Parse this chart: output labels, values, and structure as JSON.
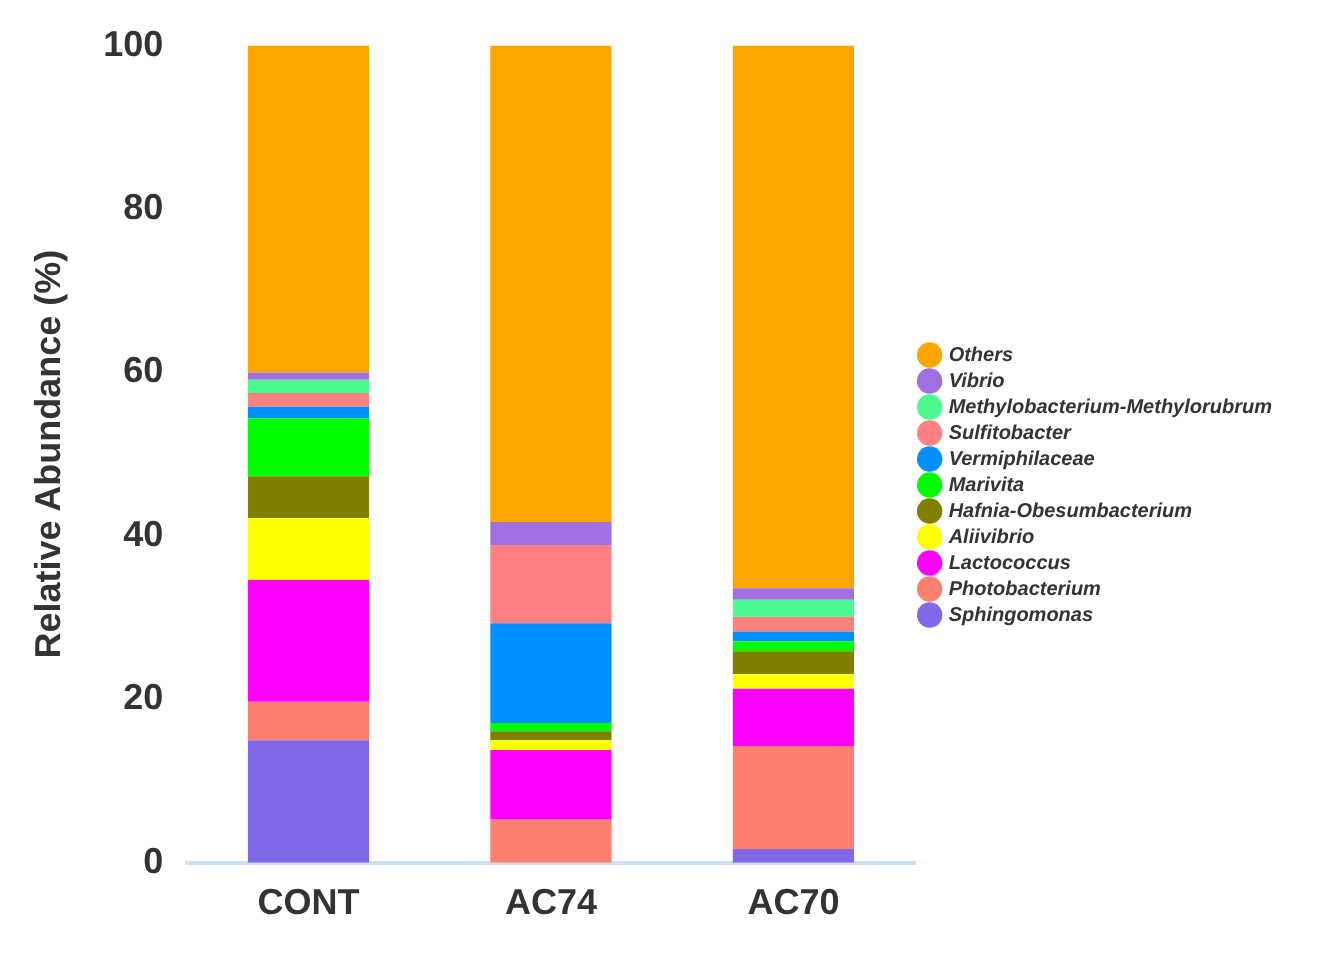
{
  "chart_data": {
    "type": "bar",
    "stacked": true,
    "ylabel": "Relative Abundance (%)",
    "categories": [
      "CONT",
      "AC74",
      "AC70"
    ],
    "ylim": [
      0,
      100
    ],
    "yticks": [
      0,
      20,
      40,
      60,
      80,
      100
    ],
    "grid": false,
    "legend": "right",
    "series": [
      {
        "name": "Sphingomonas",
        "color": "#8068e8",
        "values": [
          15.0,
          0,
          1.7
        ]
      },
      {
        "name": "Photobacterium",
        "color": "#ff8070",
        "values": [
          4.7,
          5.3,
          12.6
        ]
      },
      {
        "name": "Lactococcus",
        "color": "#ff00ff",
        "values": [
          14.9,
          8.5,
          7.0
        ]
      },
      {
        "name": "Aliivibrio",
        "color": "#ffff00",
        "values": [
          7.6,
          1.2,
          1.8
        ]
      },
      {
        "name": "Hafnia-Obesumbacterium",
        "color": "#808000",
        "values": [
          5.1,
          1.1,
          2.8
        ]
      },
      {
        "name": "Marivita",
        "color": "#00ff00",
        "values": [
          7.1,
          1.0,
          1.2
        ]
      },
      {
        "name": "Vermiphilaceae",
        "color": "#0090ff",
        "values": [
          1.4,
          12.2,
          1.2
        ]
      },
      {
        "name": "Sulfitobacter",
        "color": "#ff8080",
        "values": [
          1.7,
          9.6,
          1.8
        ]
      },
      {
        "name": "Methylobacterium-Methylorubrum",
        "color": "#4dfa90",
        "values": [
          1.6,
          0,
          2.1
        ]
      },
      {
        "name": "Vibrio",
        "color": "#a070e0",
        "values": [
          0.9,
          2.8,
          1.4
        ]
      },
      {
        "name": "Others",
        "color": "#ffa500",
        "values": [
          40.0,
          58.3,
          66.4
        ]
      }
    ]
  }
}
